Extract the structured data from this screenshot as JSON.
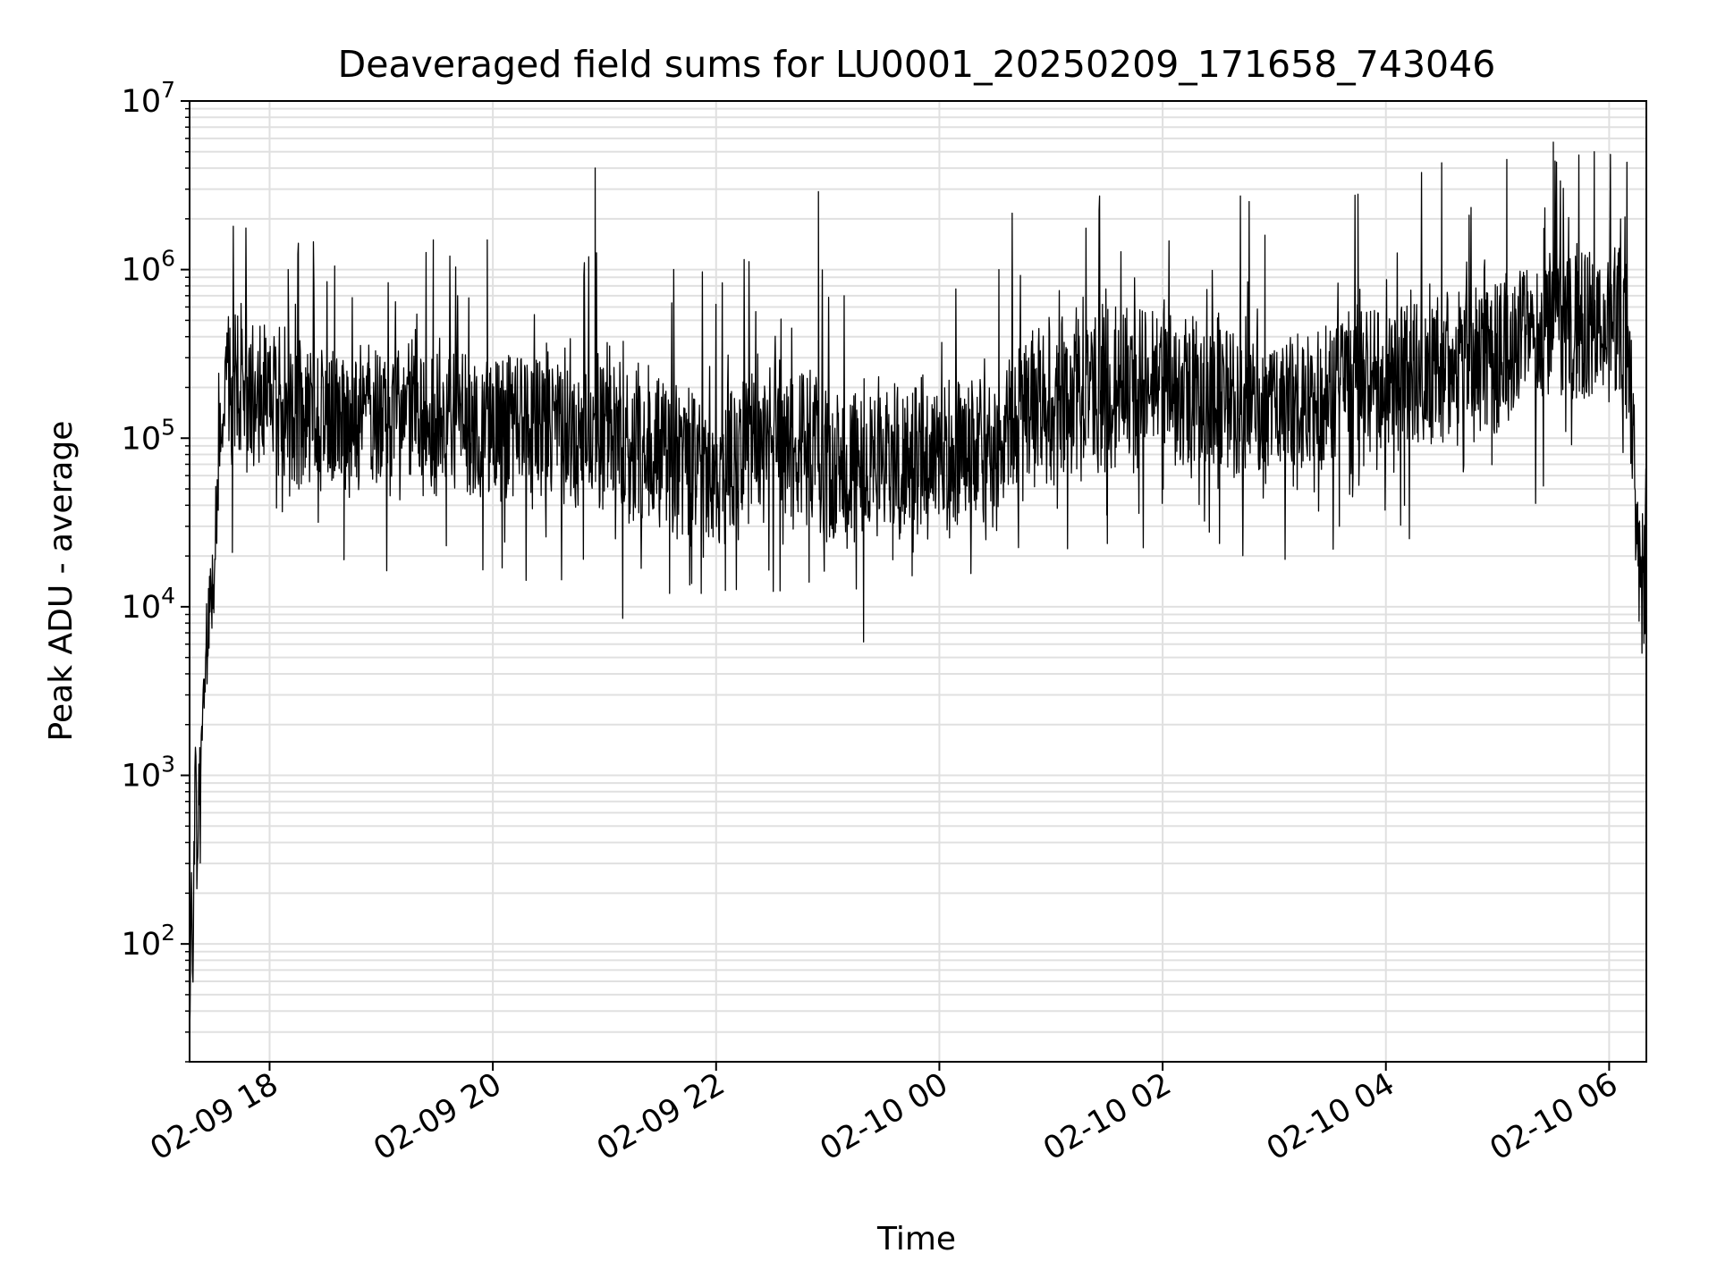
{
  "chart_data": {
    "type": "line",
    "title": "Deaveraged field sums for LU0001_20250209_171658_743046",
    "xlabel": "Time",
    "ylabel": "Peak ADU - average",
    "x_range": [
      "2025-02-09 17:17",
      "2025-02-10 06:20"
    ],
    "x_ticks": [
      {
        "label": "02-09 18",
        "t": "2025-02-09 18:00"
      },
      {
        "label": "02-09 20",
        "t": "2025-02-09 20:00"
      },
      {
        "label": "02-09 22",
        "t": "2025-02-09 22:00"
      },
      {
        "label": "02-10 00",
        "t": "2025-02-10 00:00"
      },
      {
        "label": "02-10 02",
        "t": "2025-02-10 02:00"
      },
      {
        "label": "02-10 04",
        "t": "2025-02-10 04:00"
      },
      {
        "label": "02-10 06",
        "t": "2025-02-10 06:00"
      }
    ],
    "y_scale": "log",
    "ylim": [
      20,
      10000000
    ],
    "y_ticks": [
      {
        "base": "10",
        "exp": "2",
        "value": 100
      },
      {
        "base": "10",
        "exp": "3",
        "value": 1000
      },
      {
        "base": "10",
        "exp": "4",
        "value": 10000
      },
      {
        "base": "10",
        "exp": "5",
        "value": 100000
      },
      {
        "base": "10",
        "exp": "6",
        "value": 1000000
      },
      {
        "base": "10",
        "exp": "7",
        "value": 10000000
      }
    ],
    "grid": true,
    "line_color": "#000000",
    "grid_color": "#e0e0e0",
    "series": [
      {
        "points": [
          [
            "2025-02-09 17:17",
            30
          ],
          [
            "2025-02-09 17:18",
            200
          ],
          [
            "2025-02-09 17:19",
            60
          ],
          [
            "2025-02-09 17:20",
            1500
          ],
          [
            "2025-02-09 17:21",
            300
          ],
          [
            "2025-02-09 17:22",
            900
          ],
          [
            "2025-02-09 17:24",
            2500
          ],
          [
            "2025-02-09 17:26",
            5000
          ],
          [
            "2025-02-09 17:28",
            9000
          ],
          [
            "2025-02-09 17:30",
            12000
          ],
          [
            "2025-02-09 17:33",
            80000
          ],
          [
            "2025-02-09 17:36",
            250000
          ],
          [
            "2025-02-09 17:45",
            200000
          ],
          [
            "2025-02-09 18:00",
            150000
          ],
          [
            "2025-02-09 19:00",
            130000
          ],
          [
            "2025-02-09 20:00",
            120000
          ],
          [
            "2025-02-09 21:00",
            110000
          ],
          [
            "2025-02-09 21:40",
            70000
          ],
          [
            "2025-02-09 22:00",
            60000
          ],
          [
            "2025-02-09 22:30",
            120000
          ],
          [
            "2025-02-09 23:00",
            60000
          ],
          [
            "2025-02-09 23:30",
            80000
          ],
          [
            "2025-02-10 00:00",
            80000
          ],
          [
            "2025-02-10 00:30",
            90000
          ],
          [
            "2025-02-10 01:00",
            180000
          ],
          [
            "2025-02-10 02:00",
            200000
          ],
          [
            "2025-02-10 03:00",
            150000
          ],
          [
            "2025-02-10 04:00",
            220000
          ],
          [
            "2025-02-10 05:00",
            350000
          ],
          [
            "2025-02-10 05:30",
            400000
          ],
          [
            "2025-02-10 06:00",
            500000
          ],
          [
            "2025-02-10 06:10",
            450000
          ],
          [
            "2025-02-10 06:15",
            20000
          ],
          [
            "2025-02-10 06:20",
            15000
          ]
        ],
        "spikes": [
          [
            "2025-02-09 18:10",
            1000000
          ],
          [
            "2025-02-09 18:35",
            1050000
          ],
          [
            "2025-02-09 19:28",
            1500000
          ],
          [
            "2025-02-09 19:57",
            1500000
          ],
          [
            "2025-02-09 20:55",
            4000000
          ],
          [
            "2025-02-09 22:55",
            2900000
          ],
          [
            "2025-02-10 00:32",
            1000000
          ],
          [
            "2025-02-10 02:55",
            1600000
          ],
          [
            "2025-02-10 03:45",
            2800000
          ],
          [
            "2025-02-10 04:30",
            4300000
          ],
          [
            "2025-02-10 05:05",
            4500000
          ],
          [
            "2025-02-10 05:30",
            5700000
          ],
          [
            "2025-02-10 05:52",
            5000000
          ]
        ],
        "dips": [
          [
            "2025-02-09 17:40",
            21000
          ],
          [
            "2025-02-09 18:40",
            19000
          ],
          [
            "2025-02-09 19:35",
            23000
          ],
          [
            "2025-02-09 20:05",
            17000
          ],
          [
            "2025-02-09 21:35",
            12000
          ],
          [
            "2025-02-09 21:52",
            12000
          ],
          [
            "2025-02-09 22:05",
            12500
          ],
          [
            "2025-02-09 22:50",
            14000
          ],
          [
            "2025-02-09 23:35",
            19000
          ],
          [
            "2025-02-10 00:25",
            25000
          ],
          [
            "2025-02-10 01:30",
            35000
          ],
          [
            "2025-02-10 03:35",
            30000
          ],
          [
            "2025-02-10 04:10",
            40000
          ]
        ]
      }
    ]
  }
}
